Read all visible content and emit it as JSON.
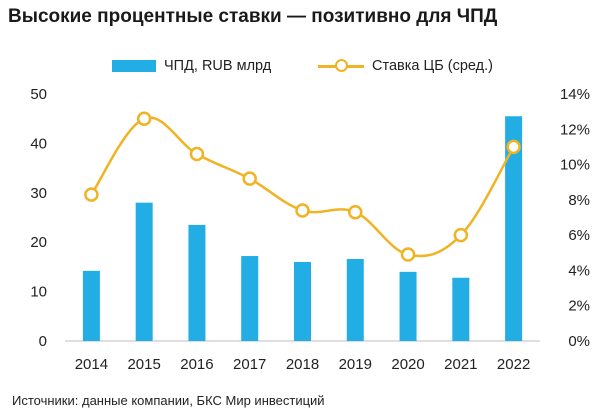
{
  "title": "Высокие процентные ставки — позитивно для ЧПД",
  "source": "Источники: данные компании, БКС Мир инвестиций",
  "colors": {
    "bar": "#22ade5",
    "line": "#f0b323",
    "axis": "#bfbfbf",
    "text": "#222222"
  },
  "chart_data": {
    "type": "bar",
    "categories": [
      "2014",
      "2015",
      "2016",
      "2017",
      "2018",
      "2019",
      "2020",
      "2021",
      "2022"
    ],
    "series": [
      {
        "name": "ЧПД, RUB млрд",
        "type": "bar",
        "axis": "left",
        "values": [
          14.2,
          28.0,
          23.5,
          17.2,
          16.0,
          16.6,
          14.0,
          12.8,
          45.5
        ]
      },
      {
        "name": "Ставка ЦБ (сред.)",
        "type": "line",
        "axis": "right",
        "values": [
          8.3,
          12.6,
          10.6,
          9.2,
          7.4,
          7.3,
          4.9,
          6.0,
          11.0
        ]
      }
    ],
    "y_left": {
      "min": 0,
      "max": 50,
      "ticks": [
        "0",
        "10",
        "20",
        "30",
        "40",
        "50"
      ]
    },
    "y_right": {
      "min": 0,
      "max": 14,
      "ticks": [
        "0%",
        "2%",
        "4%",
        "6%",
        "8%",
        "10%",
        "12%",
        "14%"
      ]
    },
    "legend": "top",
    "grid": false
  }
}
